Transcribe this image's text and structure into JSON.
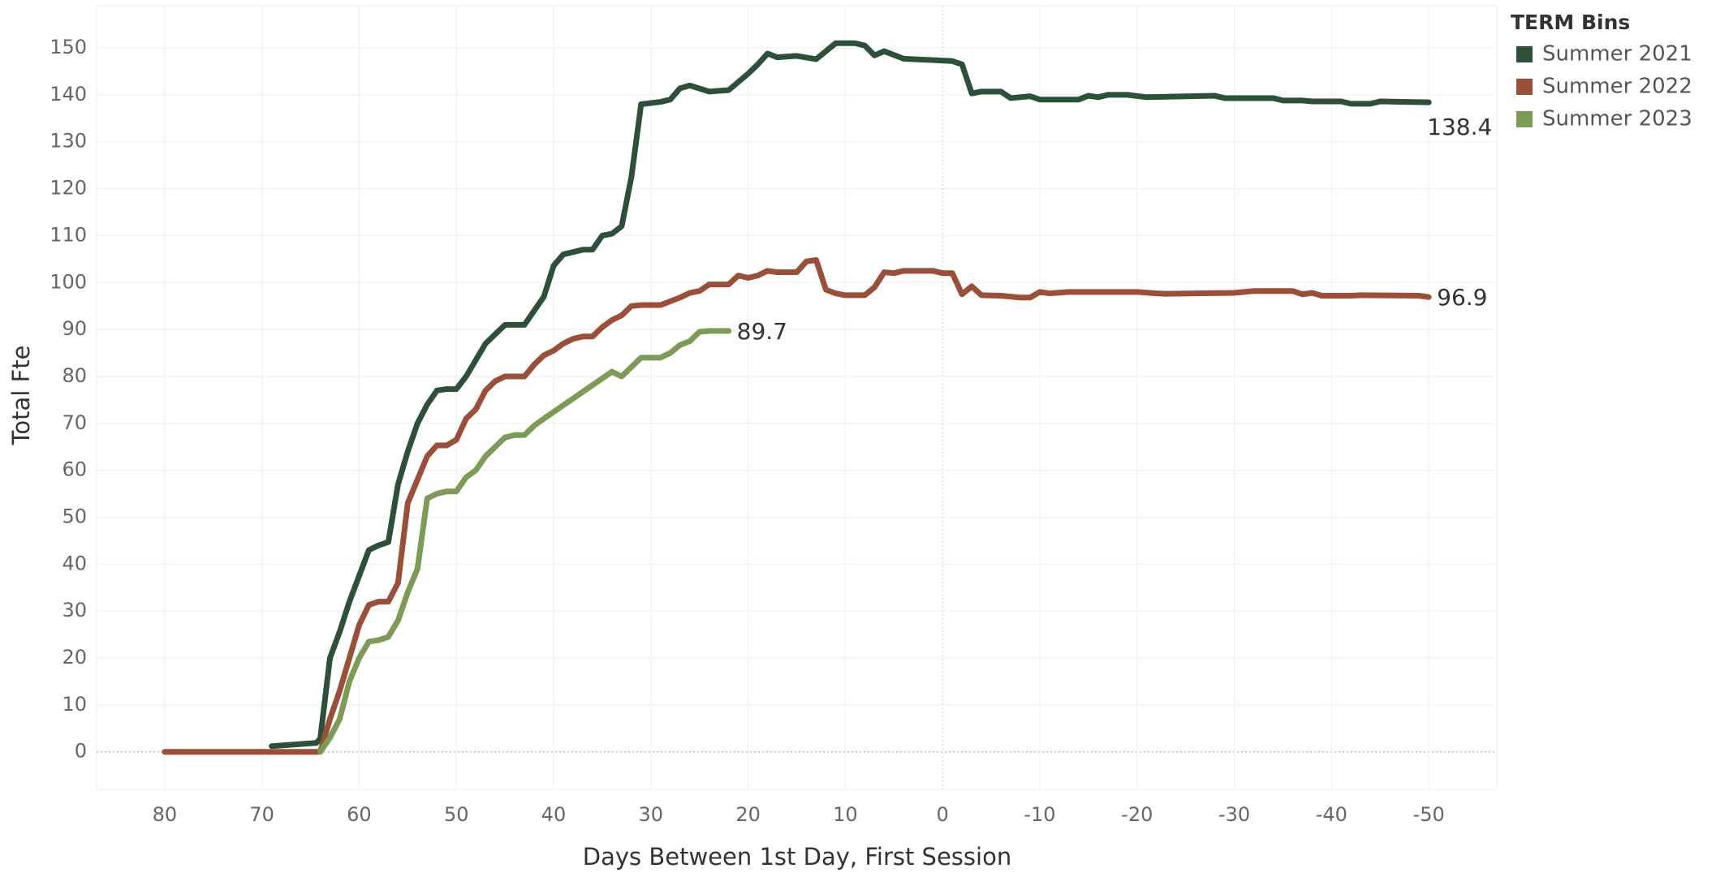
{
  "chart_data": {
    "type": "line",
    "x_label": "Days Between 1st Day, First Session",
    "y_label": "Total Fte",
    "legend_title": "TERM Bins",
    "legend": "right",
    "grid": true,
    "xlim": [
      87,
      -57
    ],
    "ylim": [
      -8,
      159
    ],
    "xticks": [
      80,
      70,
      60,
      50,
      40,
      30,
      20,
      10,
      0,
      -10,
      -20,
      -30,
      -40,
      -50
    ],
    "yticks": [
      0,
      10,
      20,
      30,
      40,
      50,
      60,
      70,
      80,
      90,
      100,
      110,
      120,
      130,
      140,
      150
    ],
    "series": [
      {
        "name": "Summer 2021",
        "color": "#2d5038",
        "x": [
          69,
          64.4,
          64,
          63,
          62,
          61,
          59,
          58,
          57,
          56,
          55,
          54,
          53,
          52,
          51,
          50,
          49,
          48,
          47,
          45,
          43,
          41,
          40,
          39,
          37,
          36,
          35,
          34,
          33,
          32,
          31,
          29,
          28,
          27,
          26,
          24,
          22,
          20,
          19,
          18,
          17,
          15,
          13,
          11,
          9,
          8,
          7,
          6,
          4,
          -1,
          -2,
          -3,
          -4,
          -6,
          -7,
          -9,
          -10,
          -14,
          -15,
          -16,
          -17,
          -19,
          -21,
          -28,
          -29,
          -34,
          -35,
          -37,
          -38,
          -41,
          -42,
          -44,
          -45,
          -50
        ],
        "values": [
          1.2,
          1.9,
          2.8,
          20,
          25.6,
          32,
          43,
          44,
          44.7,
          57,
          64,
          70,
          74,
          77,
          77.3,
          77.3,
          80,
          83.5,
          87,
          91,
          91,
          97,
          103.6,
          106,
          107,
          107,
          110,
          110.4,
          112,
          122.5,
          138,
          138.5,
          139,
          141.4,
          142,
          140.7,
          141,
          144.5,
          146.5,
          148.8,
          148,
          148.3,
          147.6,
          151,
          151,
          150.5,
          148.4,
          149.3,
          147.7,
          147.2,
          146.5,
          140.3,
          140.7,
          140.7,
          139.3,
          139.7,
          139,
          139,
          139.8,
          139.5,
          140,
          140,
          139.5,
          139.8,
          139.3,
          139.3,
          138.8,
          138.8,
          138.6,
          138.6,
          138.1,
          138.1,
          138.6,
          138.4
        ]
      },
      {
        "name": "Summer 2022",
        "color": "#9b4f36",
        "x": [
          80,
          64,
          63,
          62,
          61,
          60,
          59,
          58,
          57,
          56,
          55,
          54,
          53,
          52,
          51,
          50,
          49,
          48,
          47,
          46,
          45,
          43,
          42,
          41,
          40,
          39,
          38,
          37,
          36,
          35,
          34,
          33,
          32,
          31,
          29,
          28,
          27,
          26,
          25,
          24,
          22,
          21,
          20,
          19,
          18,
          17,
          15,
          14,
          13,
          12,
          11,
          10,
          8,
          7,
          6,
          5,
          4,
          1,
          0,
          -1,
          -2,
          -3,
          -4,
          -6,
          -8,
          -9,
          -10,
          -11,
          -13,
          -20,
          -22,
          -23,
          -30,
          -32,
          -36,
          -37,
          -38,
          -39,
          -42,
          -43,
          -49,
          -50
        ],
        "values": [
          0,
          0,
          7,
          13,
          20,
          27,
          31.3,
          32,
          32,
          36,
          53,
          58,
          63,
          65.3,
          65.3,
          66.5,
          71,
          73,
          77,
          79,
          80,
          80,
          82.5,
          84.5,
          85.5,
          87,
          88,
          88.5,
          88.5,
          90.5,
          92,
          93,
          95,
          95.2,
          95.2,
          96,
          96.8,
          97.8,
          98.2,
          99.6,
          99.6,
          101.5,
          101,
          101.5,
          102.5,
          102.2,
          102.2,
          104.5,
          104.8,
          98.5,
          97.7,
          97.3,
          97.3,
          99,
          102.2,
          102,
          102.5,
          102.5,
          102,
          102,
          97.5,
          99.2,
          97.3,
          97.2,
          96.8,
          96.8,
          98,
          97.7,
          98,
          98,
          97.7,
          97.6,
          97.8,
          98.2,
          98.2,
          97.5,
          97.8,
          97.2,
          97.2,
          97.3,
          97.2,
          96.9
        ]
      },
      {
        "name": "Summer 2023",
        "color": "#7c9b54",
        "x": [
          64,
          63,
          62,
          61,
          60,
          59,
          58,
          57,
          56,
          55,
          54,
          53,
          52,
          51,
          50,
          49,
          48,
          47,
          46,
          45,
          44,
          43,
          42,
          41,
          34,
          33,
          32,
          31,
          29,
          28,
          27,
          26,
          25,
          24,
          22
        ],
        "values": [
          0,
          3,
          7,
          15,
          20,
          23.5,
          23.8,
          24.5,
          28,
          34,
          39,
          54,
          55,
          55.5,
          55.5,
          58.5,
          60,
          63,
          65,
          67,
          67.5,
          67.5,
          69.5,
          71,
          81,
          80,
          82,
          84,
          84,
          85,
          86.7,
          87.5,
          89.5,
          89.7,
          89.7
        ]
      }
    ]
  }
}
